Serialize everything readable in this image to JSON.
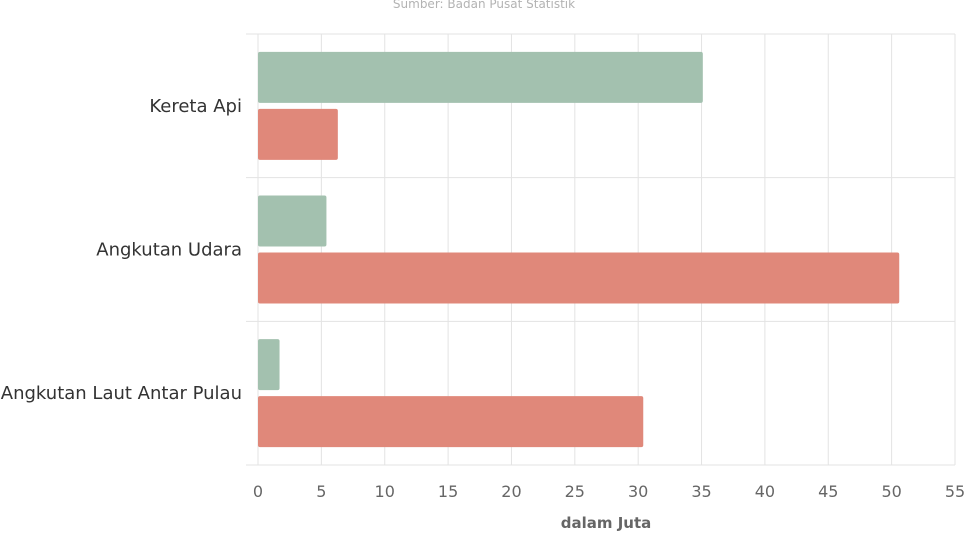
{
  "source": "Sumber: Badan Pusat Statistik",
  "chart_data": {
    "type": "bar",
    "orientation": "horizontal",
    "categories": [
      "Kereta Api",
      "Angkutan Udara",
      "Angkutan Laut Antar Pulau"
    ],
    "series": [
      {
        "color": "#a3c1af",
        "values": [
          35.1,
          5.4,
          1.7
        ]
      },
      {
        "color": "#e0887a",
        "values": [
          6.3,
          50.6,
          30.4
        ]
      }
    ],
    "xlabel": "dalam Juta",
    "ylabel": "",
    "xlim": [
      0,
      55
    ],
    "xticks": [
      0,
      5,
      10,
      15,
      20,
      25,
      30,
      35,
      40,
      45,
      50,
      55
    ],
    "grid": true,
    "legend": "none"
  }
}
